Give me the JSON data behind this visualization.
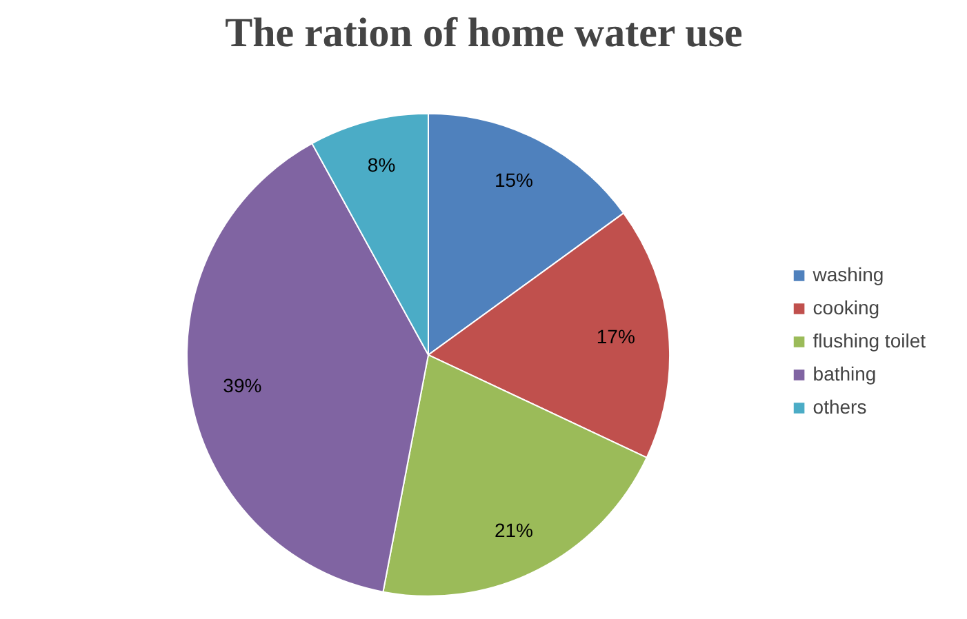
{
  "chart_data": {
    "type": "pie",
    "title": "The ration of home water use",
    "categories": [
      "washing",
      "cooking",
      "flushing toilet",
      "bathing",
      "others"
    ],
    "values": [
      15,
      17,
      21,
      39,
      8
    ],
    "value_labels": [
      "15%",
      "17%",
      "21%",
      "39%",
      "8%"
    ],
    "colors": [
      "#4f81bd",
      "#c0504d",
      "#9bbb59",
      "#8064a2",
      "#4bacc6"
    ],
    "legend": "right"
  }
}
